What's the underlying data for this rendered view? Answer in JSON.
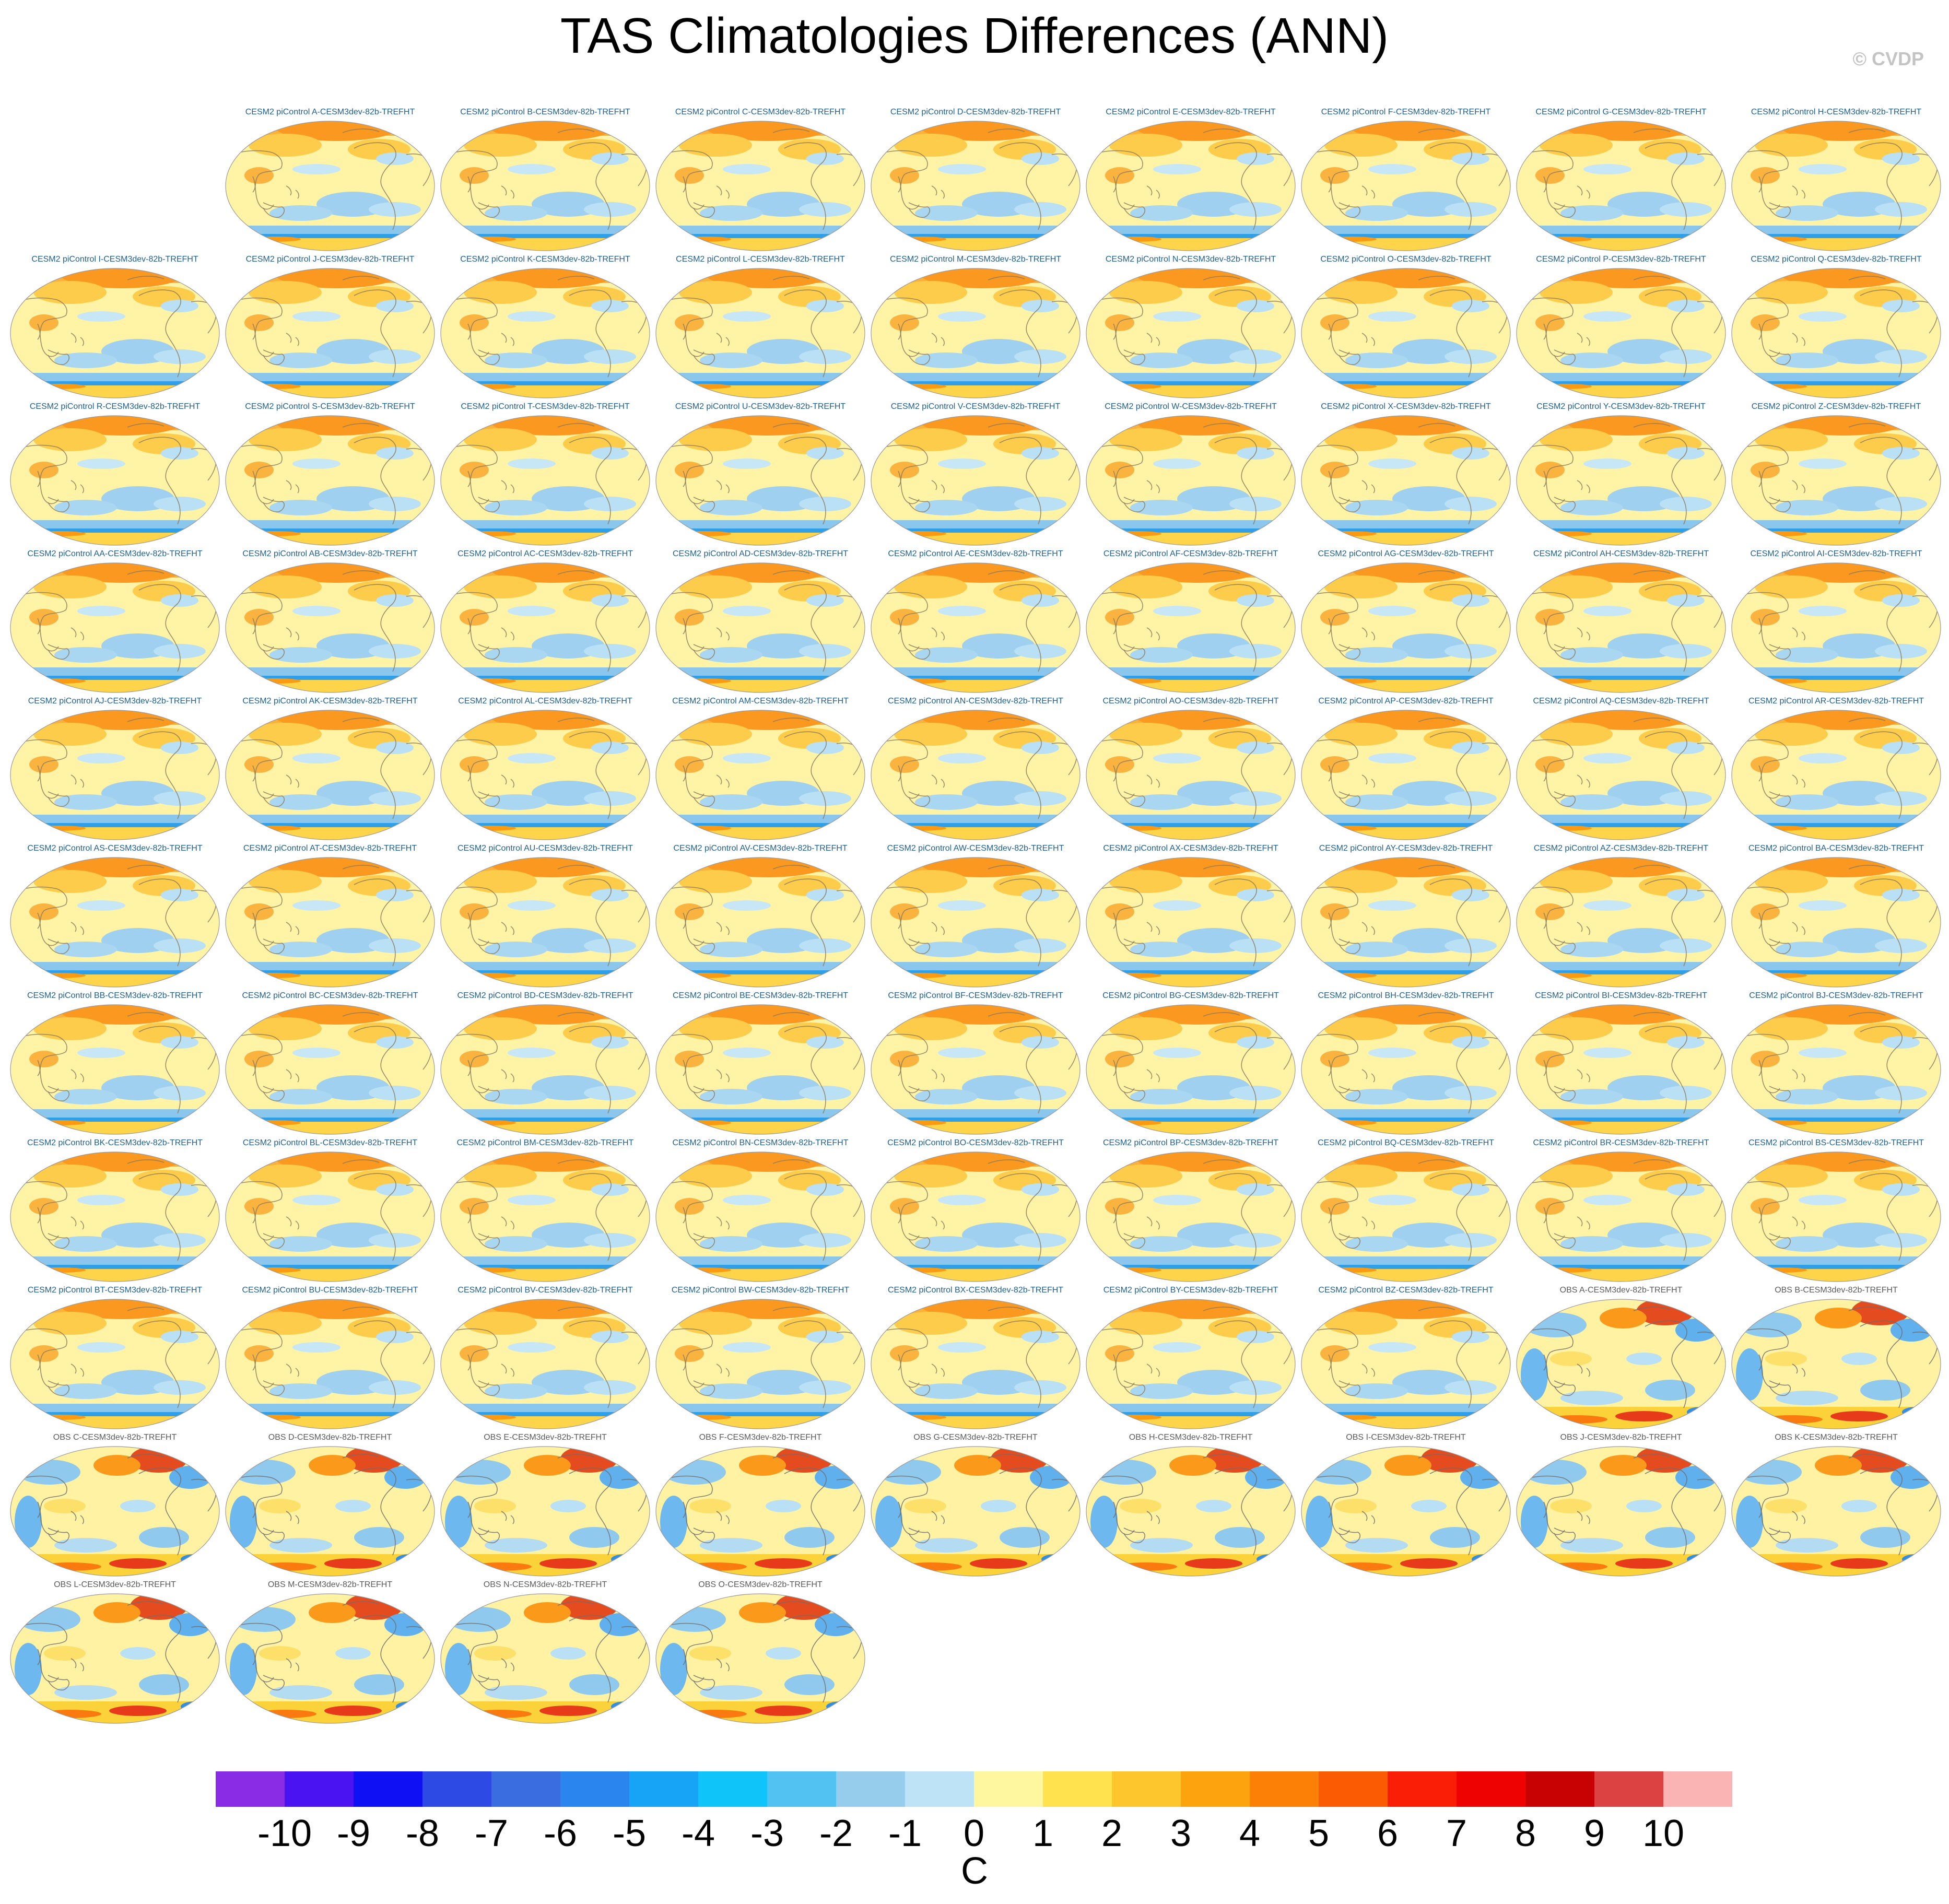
{
  "title": "TAS Climatologies Differences (ANN)",
  "watermark": "© CVDP",
  "chart_data": {
    "type": "heatmap",
    "title": "TAS Climatologies Differences (ANN)",
    "panels": [
      {
        "label": "CESM2 piControl A-CESM3dev-82b-TREFHT",
        "kind": "model"
      },
      {
        "label": "CESM2 piControl B-CESM3dev-82b-TREFHT",
        "kind": "model"
      },
      {
        "label": "CESM2 piControl C-CESM3dev-82b-TREFHT",
        "kind": "model"
      },
      {
        "label": "CESM2 piControl D-CESM3dev-82b-TREFHT",
        "kind": "model"
      },
      {
        "label": "CESM2 piControl E-CESM3dev-82b-TREFHT",
        "kind": "model"
      },
      {
        "label": "CESM2 piControl F-CESM3dev-82b-TREFHT",
        "kind": "model"
      },
      {
        "label": "CESM2 piControl G-CESM3dev-82b-TREFHT",
        "kind": "model"
      },
      {
        "label": "CESM2 piControl H-CESM3dev-82b-TREFHT",
        "kind": "model"
      },
      {
        "label": "CESM2 piControl I-CESM3dev-82b-TREFHT",
        "kind": "model"
      },
      {
        "label": "CESM2 piControl J-CESM3dev-82b-TREFHT",
        "kind": "model"
      },
      {
        "label": "CESM2 piControl K-CESM3dev-82b-TREFHT",
        "kind": "model"
      },
      {
        "label": "CESM2 piControl L-CESM3dev-82b-TREFHT",
        "kind": "model"
      },
      {
        "label": "CESM2 piControl M-CESM3dev-82b-TREFHT",
        "kind": "model"
      },
      {
        "label": "CESM2 piControl N-CESM3dev-82b-TREFHT",
        "kind": "model"
      },
      {
        "label": "CESM2 piControl O-CESM3dev-82b-TREFHT",
        "kind": "model"
      },
      {
        "label": "CESM2 piControl P-CESM3dev-82b-TREFHT",
        "kind": "model"
      },
      {
        "label": "CESM2 piControl Q-CESM3dev-82b-TREFHT",
        "kind": "model"
      },
      {
        "label": "CESM2 piControl R-CESM3dev-82b-TREFHT",
        "kind": "model"
      },
      {
        "label": "CESM2 piControl S-CESM3dev-82b-TREFHT",
        "kind": "model"
      },
      {
        "label": "CESM2 piControl T-CESM3dev-82b-TREFHT",
        "kind": "model"
      },
      {
        "label": "CESM2 piControl U-CESM3dev-82b-TREFHT",
        "kind": "model"
      },
      {
        "label": "CESM2 piControl V-CESM3dev-82b-TREFHT",
        "kind": "model"
      },
      {
        "label": "CESM2 piControl W-CESM3dev-82b-TREFHT",
        "kind": "model"
      },
      {
        "label": "CESM2 piControl X-CESM3dev-82b-TREFHT",
        "kind": "model"
      },
      {
        "label": "CESM2 piControl Y-CESM3dev-82b-TREFHT",
        "kind": "model"
      },
      {
        "label": "CESM2 piControl Z-CESM3dev-82b-TREFHT",
        "kind": "model"
      },
      {
        "label": "CESM2 piControl AA-CESM3dev-82b-TREFHT",
        "kind": "model"
      },
      {
        "label": "CESM2 piControl AB-CESM3dev-82b-TREFHT",
        "kind": "model"
      },
      {
        "label": "CESM2 piControl AC-CESM3dev-82b-TREFHT",
        "kind": "model"
      },
      {
        "label": "CESM2 piControl AD-CESM3dev-82b-TREFHT",
        "kind": "model"
      },
      {
        "label": "CESM2 piControl AE-CESM3dev-82b-TREFHT",
        "kind": "model"
      },
      {
        "label": "CESM2 piControl AF-CESM3dev-82b-TREFHT",
        "kind": "model"
      },
      {
        "label": "CESM2 piControl AG-CESM3dev-82b-TREFHT",
        "kind": "model"
      },
      {
        "label": "CESM2 piControl AH-CESM3dev-82b-TREFHT",
        "kind": "model"
      },
      {
        "label": "CESM2 piControl AI-CESM3dev-82b-TREFHT",
        "kind": "model"
      },
      {
        "label": "CESM2 piControl AJ-CESM3dev-82b-TREFHT",
        "kind": "model"
      },
      {
        "label": "CESM2 piControl AK-CESM3dev-82b-TREFHT",
        "kind": "model"
      },
      {
        "label": "CESM2 piControl AL-CESM3dev-82b-TREFHT",
        "kind": "model"
      },
      {
        "label": "CESM2 piControl AM-CESM3dev-82b-TREFHT",
        "kind": "model"
      },
      {
        "label": "CESM2 piControl AN-CESM3dev-82b-TREFHT",
        "kind": "model"
      },
      {
        "label": "CESM2 piControl AO-CESM3dev-82b-TREFHT",
        "kind": "model"
      },
      {
        "label": "CESM2 piControl AP-CESM3dev-82b-TREFHT",
        "kind": "model"
      },
      {
        "label": "CESM2 piControl AQ-CESM3dev-82b-TREFHT",
        "kind": "model"
      },
      {
        "label": "CESM2 piControl AR-CESM3dev-82b-TREFHT",
        "kind": "model"
      },
      {
        "label": "CESM2 piControl AS-CESM3dev-82b-TREFHT",
        "kind": "model"
      },
      {
        "label": "CESM2 piControl AT-CESM3dev-82b-TREFHT",
        "kind": "model"
      },
      {
        "label": "CESM2 piControl AU-CESM3dev-82b-TREFHT",
        "kind": "model"
      },
      {
        "label": "CESM2 piControl AV-CESM3dev-82b-TREFHT",
        "kind": "model"
      },
      {
        "label": "CESM2 piControl AW-CESM3dev-82b-TREFHT",
        "kind": "model"
      },
      {
        "label": "CESM2 piControl AX-CESM3dev-82b-TREFHT",
        "kind": "model"
      },
      {
        "label": "CESM2 piControl AY-CESM3dev-82b-TREFHT",
        "kind": "model"
      },
      {
        "label": "CESM2 piControl AZ-CESM3dev-82b-TREFHT",
        "kind": "model"
      },
      {
        "label": "CESM2 piControl BA-CESM3dev-82b-TREFHT",
        "kind": "model"
      },
      {
        "label": "CESM2 piControl BB-CESM3dev-82b-TREFHT",
        "kind": "model"
      },
      {
        "label": "CESM2 piControl BC-CESM3dev-82b-TREFHT",
        "kind": "model"
      },
      {
        "label": "CESM2 piControl BD-CESM3dev-82b-TREFHT",
        "kind": "model"
      },
      {
        "label": "CESM2 piControl BE-CESM3dev-82b-TREFHT",
        "kind": "model"
      },
      {
        "label": "CESM2 piControl BF-CESM3dev-82b-TREFHT",
        "kind": "model"
      },
      {
        "label": "CESM2 piControl BG-CESM3dev-82b-TREFHT",
        "kind": "model"
      },
      {
        "label": "CESM2 piControl BH-CESM3dev-82b-TREFHT",
        "kind": "model"
      },
      {
        "label": "CESM2 piControl BI-CESM3dev-82b-TREFHT",
        "kind": "model"
      },
      {
        "label": "CESM2 piControl BJ-CESM3dev-82b-TREFHT",
        "kind": "model"
      },
      {
        "label": "CESM2 piControl BK-CESM3dev-82b-TREFHT",
        "kind": "model"
      },
      {
        "label": "CESM2 piControl BL-CESM3dev-82b-TREFHT",
        "kind": "model"
      },
      {
        "label": "CESM2 piControl BM-CESM3dev-82b-TREFHT",
        "kind": "model"
      },
      {
        "label": "CESM2 piControl BN-CESM3dev-82b-TREFHT",
        "kind": "model"
      },
      {
        "label": "CESM2 piControl BO-CESM3dev-82b-TREFHT",
        "kind": "model"
      },
      {
        "label": "CESM2 piControl BP-CESM3dev-82b-TREFHT",
        "kind": "model"
      },
      {
        "label": "CESM2 piControl BQ-CESM3dev-82b-TREFHT",
        "kind": "model"
      },
      {
        "label": "CESM2 piControl BR-CESM3dev-82b-TREFHT",
        "kind": "model"
      },
      {
        "label": "CESM2 piControl BS-CESM3dev-82b-TREFHT",
        "kind": "model"
      },
      {
        "label": "CESM2 piControl BT-CESM3dev-82b-TREFHT",
        "kind": "model"
      },
      {
        "label": "CESM2 piControl BU-CESM3dev-82b-TREFHT",
        "kind": "model"
      },
      {
        "label": "CESM2 piControl BV-CESM3dev-82b-TREFHT",
        "kind": "model"
      },
      {
        "label": "CESM2 piControl BW-CESM3dev-82b-TREFHT",
        "kind": "model"
      },
      {
        "label": "CESM2 piControl BX-CESM3dev-82b-TREFHT",
        "kind": "model"
      },
      {
        "label": "CESM2 piControl BY-CESM3dev-82b-TREFHT",
        "kind": "model"
      },
      {
        "label": "CESM2 piControl BZ-CESM3dev-82b-TREFHT",
        "kind": "model"
      },
      {
        "label": "OBS A-CESM3dev-82b-TREFHT",
        "kind": "obs"
      },
      {
        "label": "OBS B-CESM3dev-82b-TREFHT",
        "kind": "obs"
      },
      {
        "label": "OBS C-CESM3dev-82b-TREFHT",
        "kind": "obs"
      },
      {
        "label": "OBS D-CESM3dev-82b-TREFHT",
        "kind": "obs"
      },
      {
        "label": "OBS E-CESM3dev-82b-TREFHT",
        "kind": "obs"
      },
      {
        "label": "OBS F-CESM3dev-82b-TREFHT",
        "kind": "obs"
      },
      {
        "label": "OBS G-CESM3dev-82b-TREFHT",
        "kind": "obs"
      },
      {
        "label": "OBS H-CESM3dev-82b-TREFHT",
        "kind": "obs"
      },
      {
        "label": "OBS I-CESM3dev-82b-TREFHT",
        "kind": "obs"
      },
      {
        "label": "OBS J-CESM3dev-82b-TREFHT",
        "kind": "obs"
      },
      {
        "label": "OBS K-CESM3dev-82b-TREFHT",
        "kind": "obs"
      },
      {
        "label": "OBS L-CESM3dev-82b-TREFHT",
        "kind": "obs"
      },
      {
        "label": "OBS M-CESM3dev-82b-TREFHT",
        "kind": "obs"
      },
      {
        "label": "OBS N-CESM3dev-82b-TREFHT",
        "kind": "obs"
      },
      {
        "label": "OBS O-CESM3dev-82b-TREFHT",
        "kind": "obs"
      }
    ],
    "colorbar": {
      "unit": "C",
      "ticks": [
        "-10",
        "-9",
        "-8",
        "-7",
        "-6",
        "-5",
        "-4",
        "-3",
        "-2",
        "-1",
        "0",
        "1",
        "2",
        "3",
        "4",
        "5",
        "6",
        "7",
        "8",
        "9",
        "10"
      ],
      "colors": [
        "#8a2be6",
        "#4a14f2",
        "#1010f5",
        "#2e4ae4",
        "#3a6ee0",
        "#2a86ee",
        "#18a4f6",
        "#0ec4f8",
        "#52c2f2",
        "#96cdec",
        "#bee3f6",
        "#fff7a0",
        "#ffe24e",
        "#fdc62c",
        "#fca30d",
        "#fc8006",
        "#fb5b02",
        "#f91e05",
        "#ef0202",
        "#c80202",
        "#dc4242",
        "#fbb4b4"
      ]
    }
  }
}
